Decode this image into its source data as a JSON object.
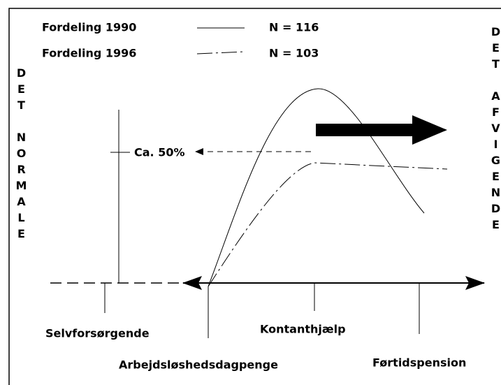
{
  "legend": [
    {
      "label": "Fordeling 1990",
      "n": "N = 116"
    },
    {
      "label": "Fordeling 1996",
      "n": "N = 103"
    }
  ],
  "left_label": "DET NORMALE",
  "right_label": "DET AFVIGENDE",
  "annotation": "Ca. 50%",
  "axis_labels": [
    "Selvforsørgende",
    "Arbejdsløshedsdagpenge",
    "Kontanthjælp",
    "Førtidspension"
  ]
}
